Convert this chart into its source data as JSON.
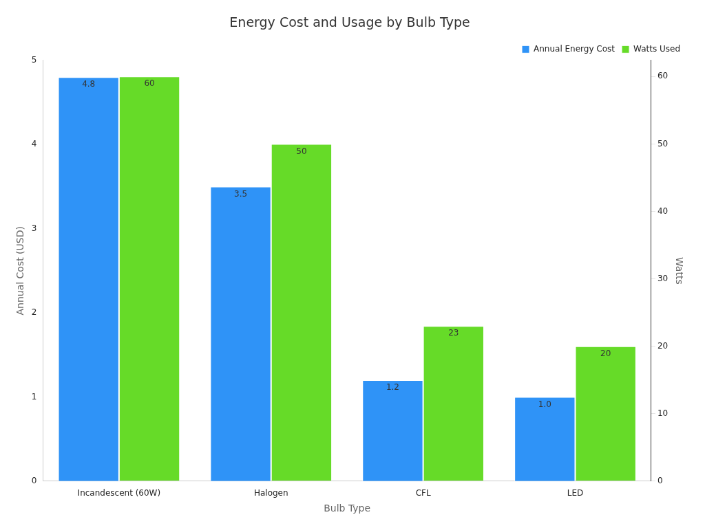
{
  "chart_data": {
    "type": "bar",
    "title": "Energy Cost and Usage by Bulb Type",
    "xlabel": "Bulb Type",
    "ylabel": "Annual Cost (USD)",
    "y2label": "Watts",
    "categories": [
      "Incandescent (60W)",
      "Halogen",
      "CFL",
      "LED"
    ],
    "series": [
      {
        "name": "Annual Energy Cost",
        "color": "#2f93f7",
        "values": [
          4.8,
          3.5,
          1.2,
          1.0
        ],
        "value_labels": [
          "4.8",
          "3.5",
          "1.2",
          "1.0"
        ]
      },
      {
        "name": "Watts Used",
        "color": "#66db28",
        "values": [
          60,
          50,
          23,
          20
        ],
        "value_labels": [
          "60",
          "50",
          "23",
          "20"
        ],
        "axis": "y2"
      }
    ],
    "ylim": [
      0,
      5
    ],
    "yticks": [
      0,
      1,
      2,
      3,
      4,
      5
    ],
    "y2lim": [
      0,
      62.4
    ],
    "y2ticks": [
      0,
      10,
      20,
      30,
      40,
      50,
      60
    ],
    "grid": false,
    "legend": "top right"
  }
}
